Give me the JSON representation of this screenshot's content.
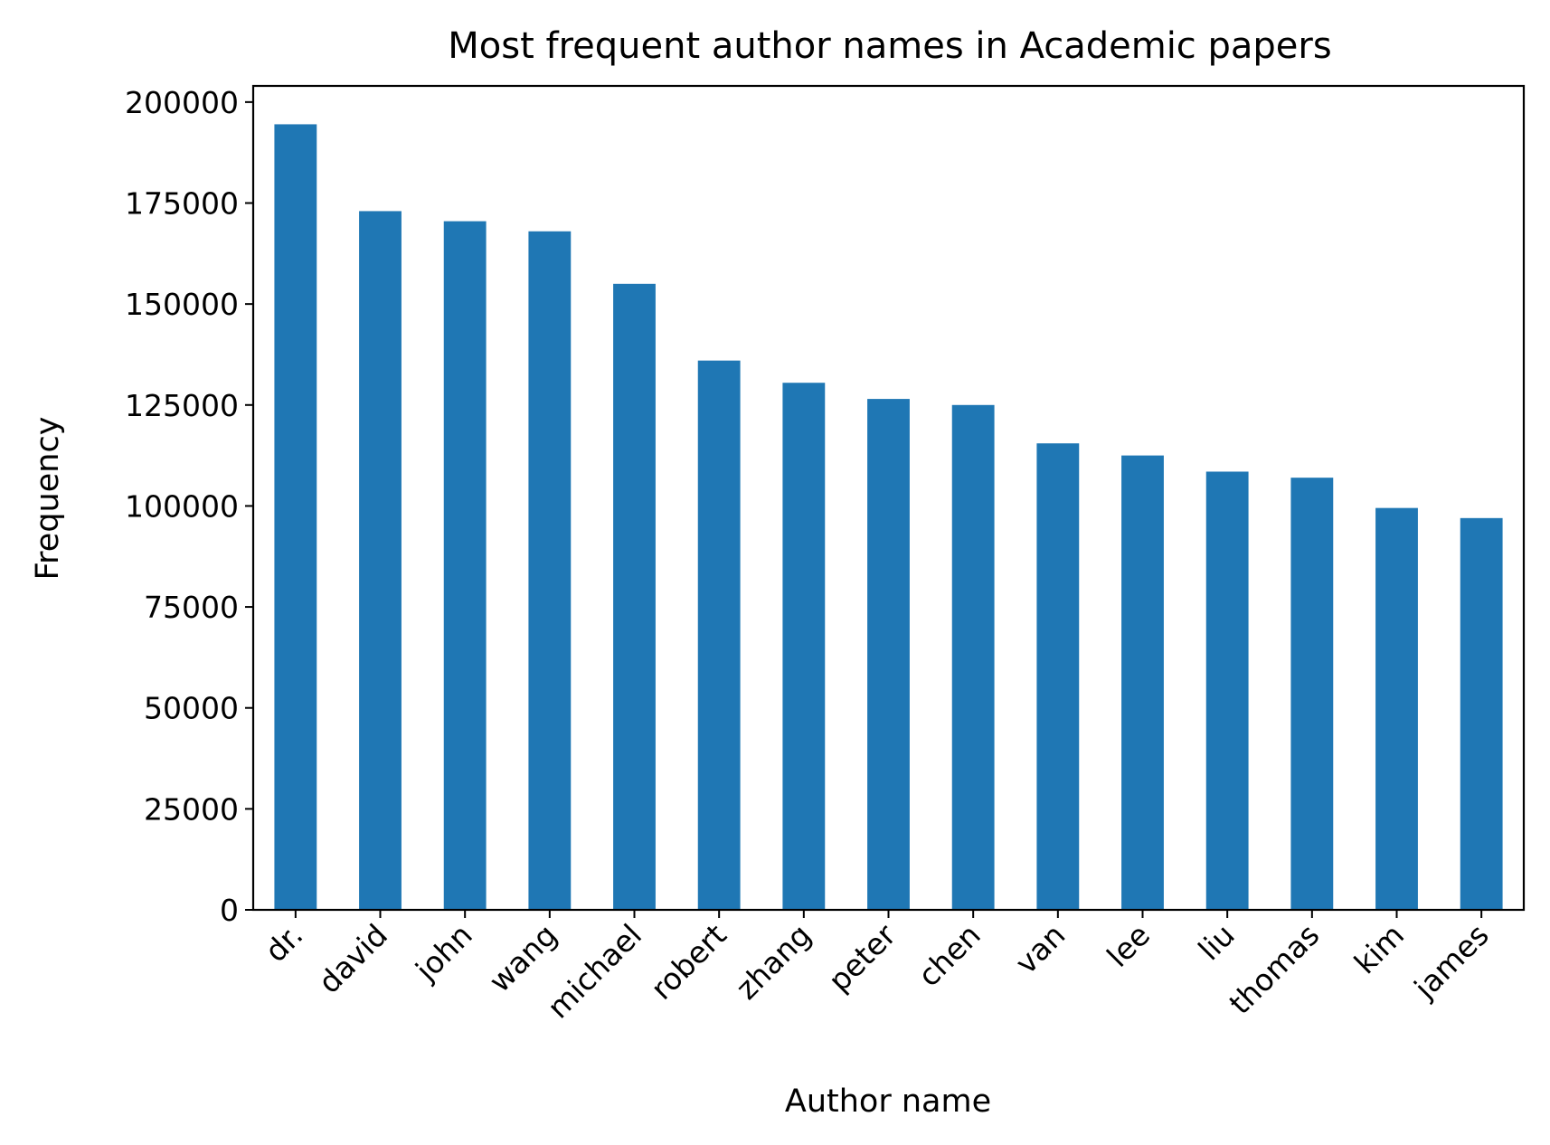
{
  "chart_data": {
    "type": "bar",
    "title": "Most frequent author names in Academic papers",
    "xlabel": "Author name",
    "ylabel": "Frequency",
    "categories": [
      "dr.",
      "david",
      "john",
      "wang",
      "michael",
      "robert",
      "zhang",
      "peter",
      "chen",
      "van",
      "lee",
      "liu",
      "thomas",
      "kim",
      "james"
    ],
    "values": [
      194500,
      173000,
      170500,
      168000,
      155000,
      136000,
      130500,
      126500,
      125000,
      115500,
      112500,
      108500,
      107000,
      99500,
      97000
    ],
    "ylim": [
      0,
      204000
    ],
    "yticks": [
      0,
      25000,
      50000,
      75000,
      100000,
      125000,
      150000,
      175000,
      200000
    ],
    "grid": false,
    "legend": "none",
    "bar_color": "#1f77b4"
  }
}
